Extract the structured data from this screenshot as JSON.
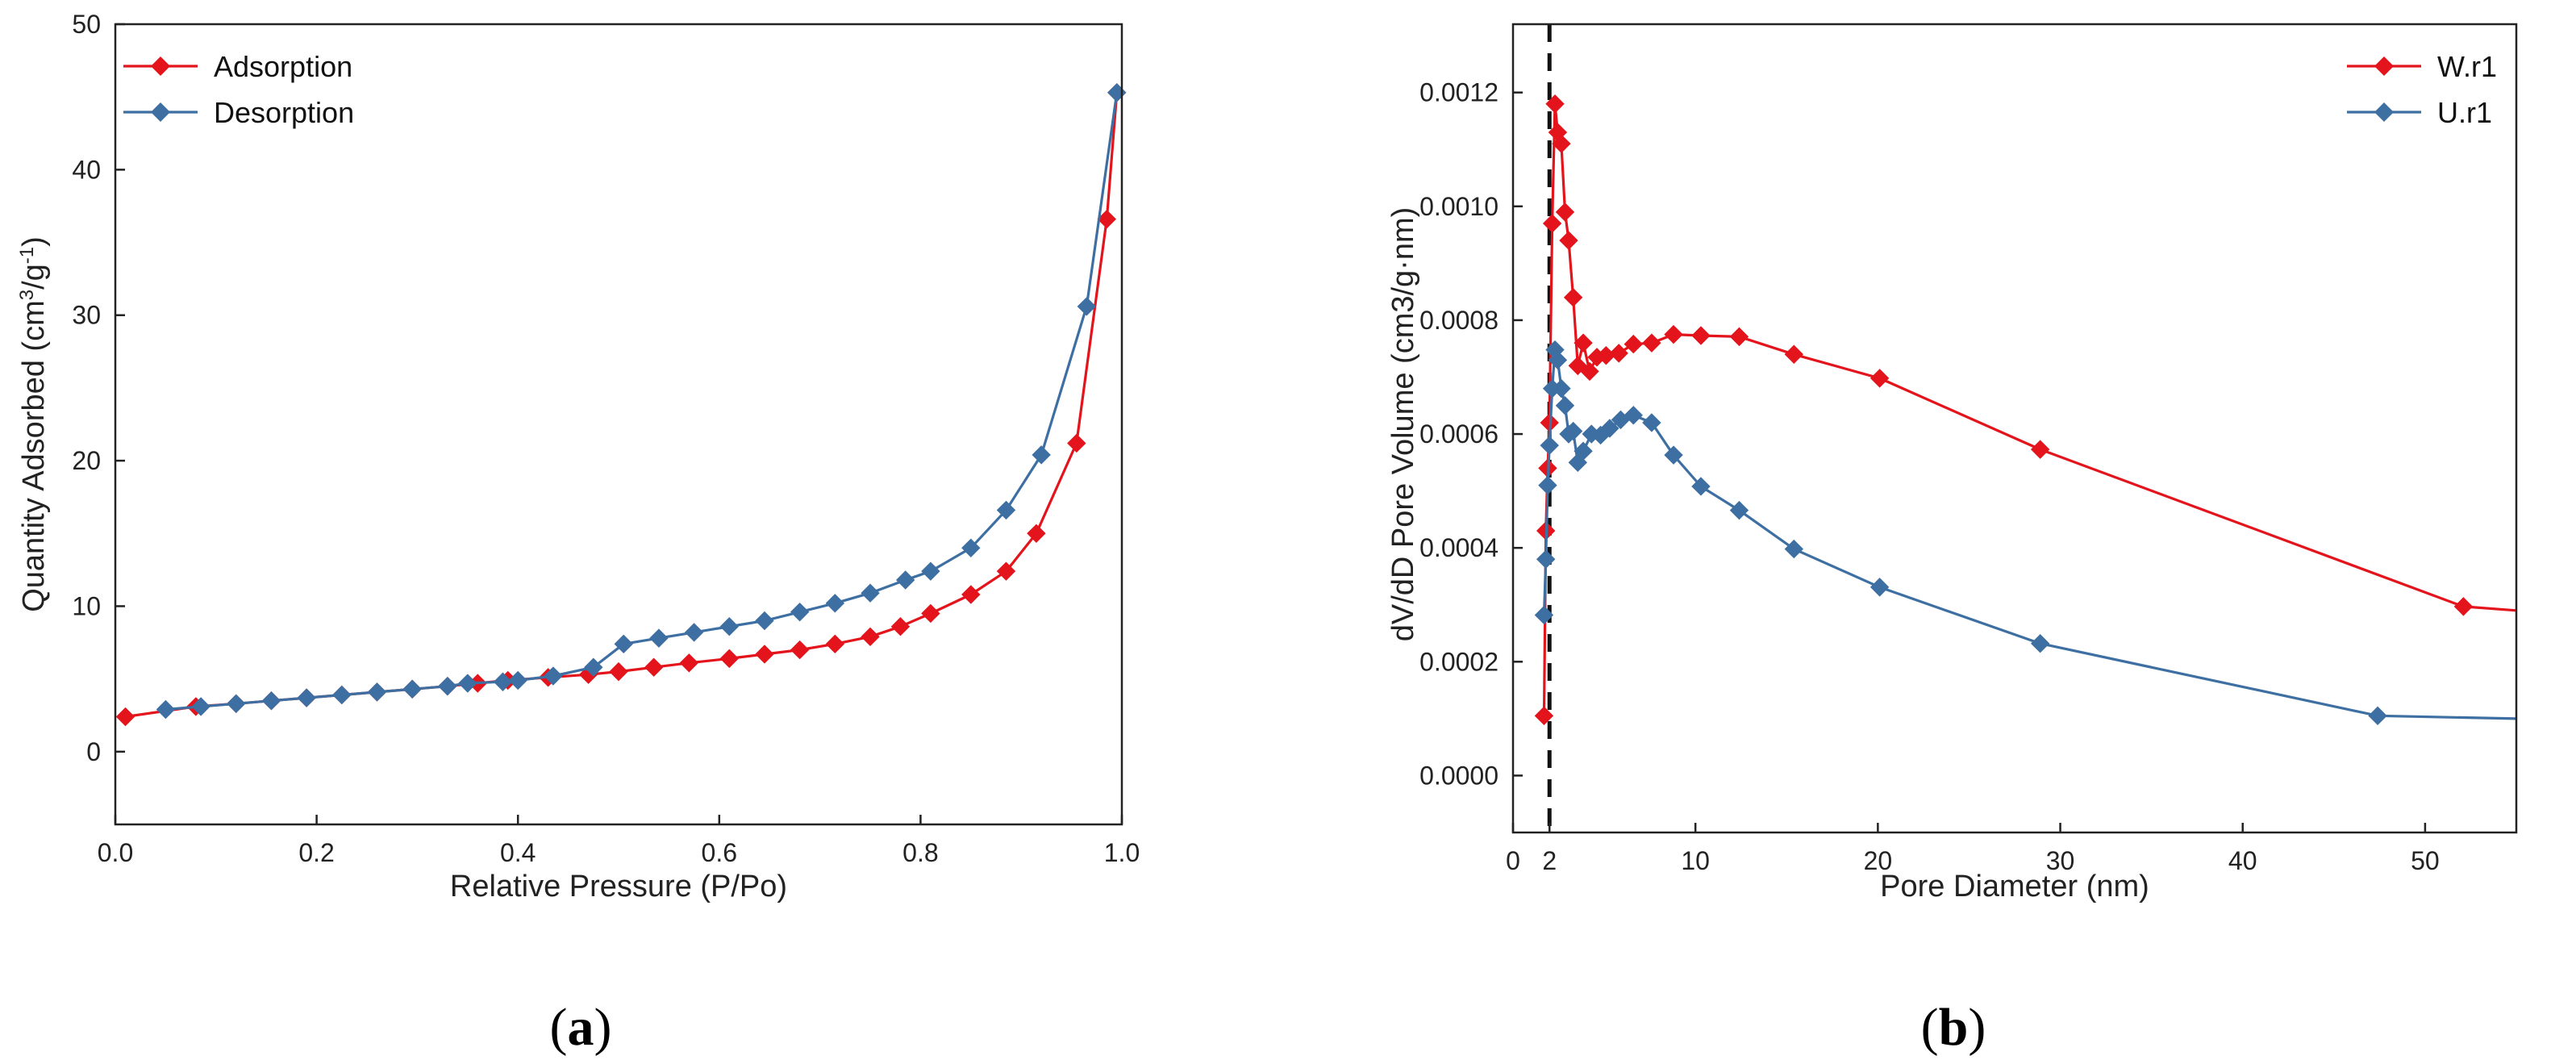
{
  "chart_data": [
    {
      "id": "a",
      "type": "line",
      "caption_open": "(",
      "caption_letter": "a",
      "caption_close": ")",
      "title": "",
      "xlabel": "Relative Pressure (P/Po)",
      "ylabel": "Quantity Adsorbed (cm³/g⁻¹)",
      "ylabel_parts": [
        "Quantity Adsorbed (cm",
        "3",
        "/g",
        "-1",
        ")"
      ],
      "xlim": [
        0.0,
        1.0
      ],
      "ylim": [
        -5,
        50
      ],
      "xticks": [
        0.0,
        0.2,
        0.4,
        0.6,
        0.8,
        1.0
      ],
      "xtick_labels": [
        "0.0",
        "0.2",
        "0.4",
        "0.6",
        "0.8",
        "1.0"
      ],
      "yticks": [
        0,
        10,
        20,
        30,
        40,
        50
      ],
      "ytick_labels": [
        "0",
        "10",
        "20",
        "30",
        "40",
        "50"
      ],
      "grid": false,
      "legend": "top-left",
      "series": [
        {
          "name": "Adsorption",
          "color": "#e3141b",
          "marker": "diamond",
          "x": [
            0.01,
            0.08,
            0.12,
            0.155,
            0.19,
            0.225,
            0.26,
            0.295,
            0.33,
            0.36,
            0.39,
            0.43,
            0.47,
            0.5,
            0.535,
            0.57,
            0.61,
            0.645,
            0.68,
            0.715,
            0.75,
            0.78,
            0.81,
            0.85,
            0.885,
            0.915,
            0.955,
            0.985,
            0.995
          ],
          "y": [
            2.4,
            3.1,
            3.3,
            3.5,
            3.7,
            3.9,
            4.1,
            4.3,
            4.5,
            4.7,
            4.9,
            5.1,
            5.3,
            5.5,
            5.8,
            6.1,
            6.4,
            6.7,
            7.0,
            7.4,
            7.9,
            8.6,
            9.5,
            10.8,
            12.4,
            15.0,
            21.2,
            36.6,
            45.3
          ]
        },
        {
          "name": "Desorption",
          "color": "#3e6fa2",
          "marker": "diamond",
          "x": [
            0.995,
            0.965,
            0.92,
            0.885,
            0.85,
            0.81,
            0.785,
            0.75,
            0.715,
            0.68,
            0.645,
            0.61,
            0.575,
            0.54,
            0.505,
            0.475,
            0.435,
            0.4,
            0.385,
            0.35,
            0.33,
            0.295,
            0.26,
            0.225,
            0.19,
            0.155,
            0.12,
            0.085,
            0.05
          ],
          "y": [
            45.3,
            30.6,
            20.4,
            16.6,
            14.0,
            12.4,
            11.8,
            10.9,
            10.2,
            9.6,
            9.0,
            8.6,
            8.2,
            7.8,
            7.4,
            5.8,
            5.2,
            4.9,
            4.8,
            4.7,
            4.5,
            4.3,
            4.1,
            3.9,
            3.7,
            3.5,
            3.3,
            3.1,
            2.9
          ]
        }
      ]
    },
    {
      "id": "b",
      "type": "line",
      "caption_open": "(",
      "caption_letter": "b",
      "caption_close": ")",
      "title": "",
      "xlabel": "Pore Diameter (nm)",
      "ylabel": "dV/dD Pore Volume (cm3/g·nm)",
      "xlim": [
        0,
        55
      ],
      "ylim": [
        -0.0001,
        0.00132
      ],
      "xticks": [
        0,
        2,
        10,
        20,
        30,
        40,
        50
      ],
      "xtick_labels": [
        "0",
        "2",
        "10",
        "20",
        "30",
        "40",
        "50"
      ],
      "yticks": [
        0.0,
        0.0002,
        0.0004,
        0.0006,
        0.0008,
        0.001,
        0.0012
      ],
      "ytick_labels": [
        "0.0000",
        "0.0002",
        "0.0004",
        "0.0006",
        "0.0008",
        "0.0010",
        "0.0012"
      ],
      "grid": false,
      "legend": "top-right",
      "reference_line_x": 2,
      "series": [
        {
          "name": "W.r1",
          "color": "#e3141b",
          "marker": "diamond",
          "x": [
            1.7,
            1.8,
            1.9,
            2.0,
            2.15,
            2.3,
            2.45,
            2.65,
            2.85,
            3.05,
            3.3,
            3.55,
            3.85,
            4.2,
            4.6,
            5.1,
            5.8,
            6.6,
            7.6,
            8.8,
            10.3,
            12.4,
            15.4,
            20.1,
            28.9,
            52.1,
            55.0
          ],
          "y": [
            0.000105,
            0.00043,
            0.00054,
            0.00062,
            0.00097,
            0.00118,
            0.00113,
            0.00111,
            0.00099,
            0.00094,
            0.00084,
            0.00072,
            0.00076,
            0.00071,
            0.000735,
            0.000738,
            0.000742,
            0.000758,
            0.00076,
            0.000775,
            0.000773,
            0.000771,
            0.00074,
            0.000698,
            0.000573,
            0.000297,
            0.00029
          ]
        },
        {
          "name": "U.r1",
          "color": "#3e6fa2",
          "marker": "diamond",
          "x": [
            1.7,
            1.8,
            1.9,
            2.0,
            2.15,
            2.3,
            2.45,
            2.65,
            2.85,
            3.05,
            3.3,
            3.55,
            3.85,
            4.3,
            4.8,
            5.3,
            5.9,
            6.6,
            7.6,
            8.8,
            10.3,
            12.4,
            15.4,
            20.1,
            28.9,
            47.4,
            55.0
          ],
          "y": [
            0.000282,
            0.00038,
            0.00051,
            0.00058,
            0.00068,
            0.000748,
            0.00073,
            0.00068,
            0.00065,
            0.0006,
            0.000605,
            0.00055,
            0.00057,
            0.0006,
            0.000598,
            0.00061,
            0.000625,
            0.000633,
            0.00062,
            0.000563,
            0.000508,
            0.000466,
            0.000398,
            0.000331,
            0.000232,
            0.000105,
            0.0001
          ]
        }
      ]
    }
  ]
}
